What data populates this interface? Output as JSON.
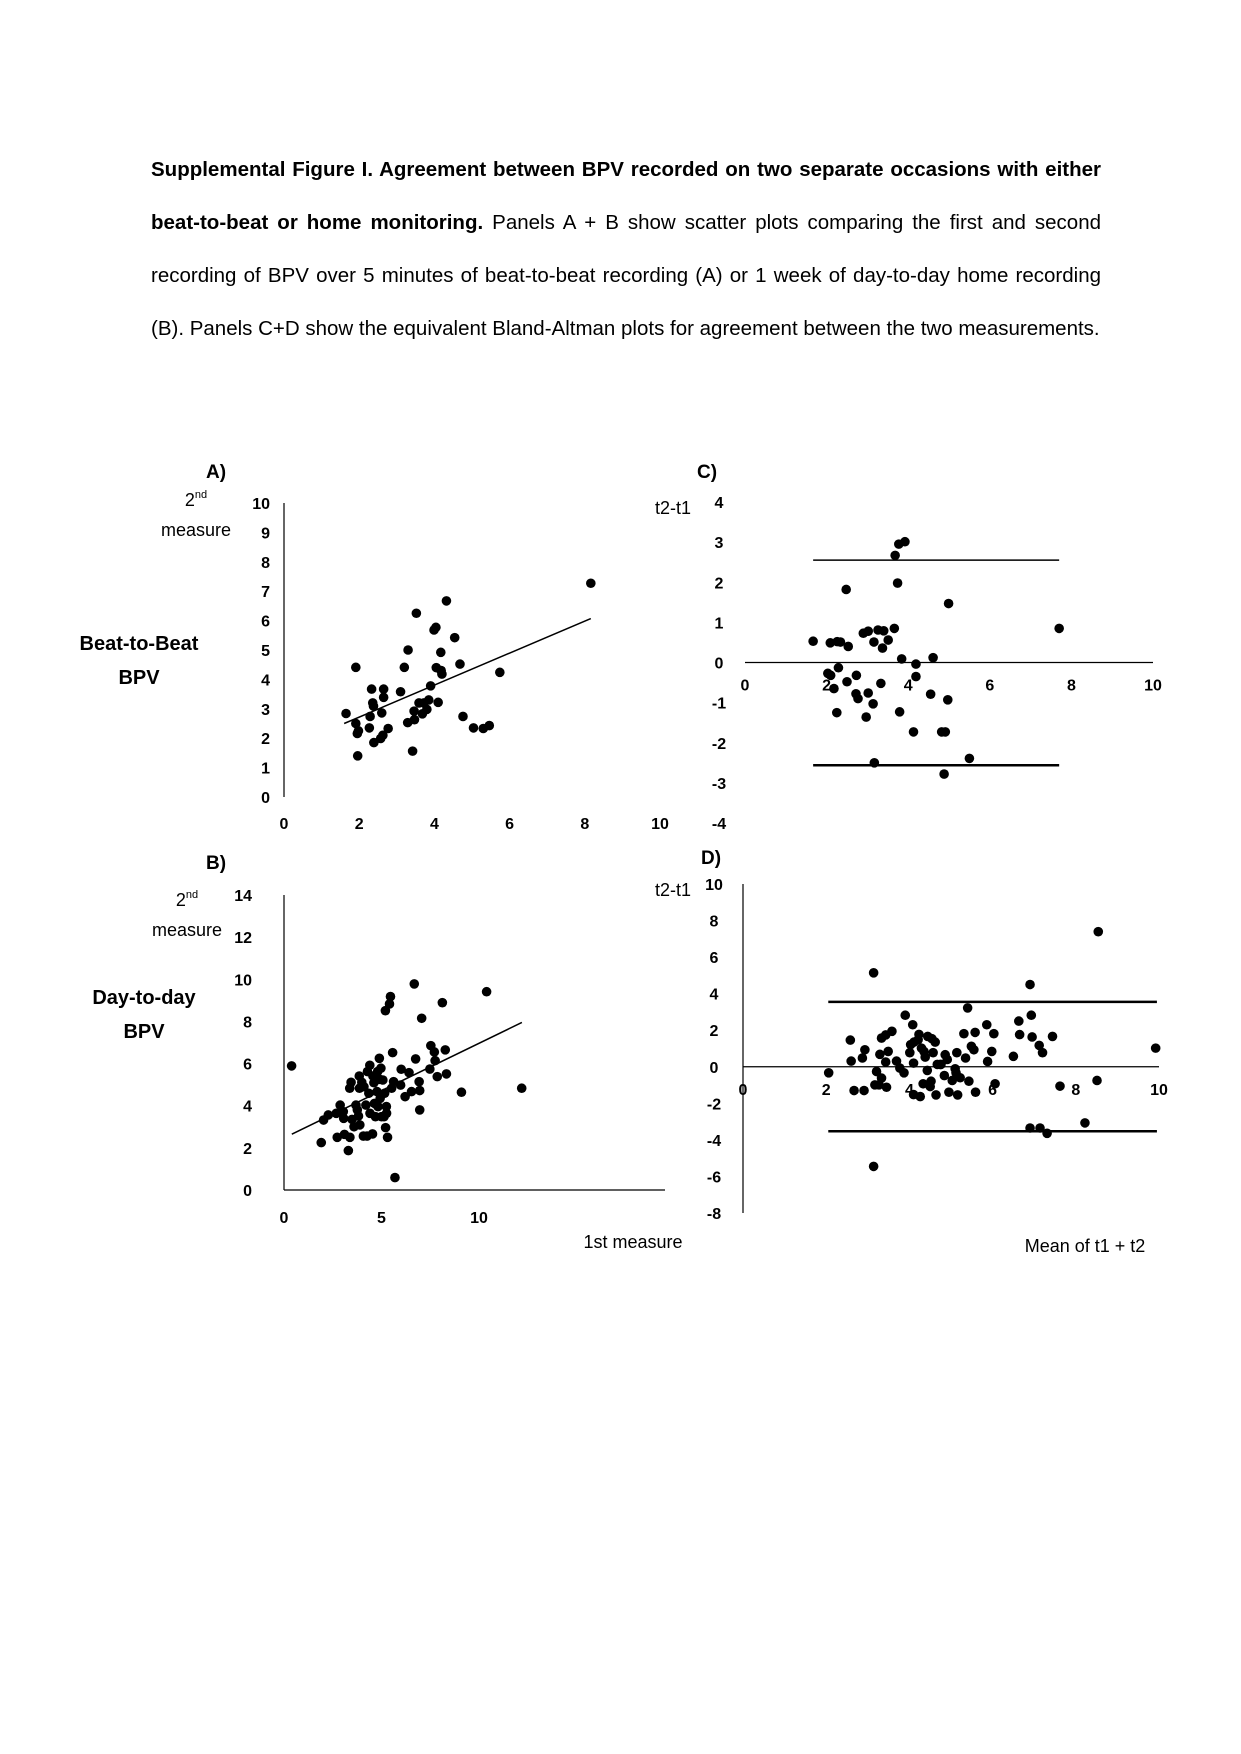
{
  "caption": {
    "bold": "Supplemental Figure I. Agreement between BPV recorded on two separate occasions with either beat-to-beat or home monitoring.",
    "text": " Panels A + B show scatter plots comparing the first and second recording of BPV over 5 minutes of beat-to-beat recording (A) or 1 week of day-to-day home recording (B). Panels C+D show the equivalent Bland-Altman plots for agreement between the two measurements."
  },
  "rows": {
    "top": [
      "Beat-to-Beat",
      "BPV"
    ],
    "bottom": [
      "Day-to-day",
      "BPV"
    ]
  },
  "chart_data": [
    {
      "panel": "A)",
      "type": "scatter",
      "ylabel": [
        "2nd",
        "measure"
      ],
      "xlabel": "",
      "xlim": [
        0,
        10
      ],
      "ylim": [
        0,
        10
      ],
      "xticks": [
        0,
        2,
        4,
        6,
        8,
        10
      ],
      "yticks": [
        0,
        1,
        2,
        3,
        4,
        5,
        6,
        7,
        8,
        9,
        10
      ],
      "trendline": [
        [
          1.6,
          2.5
        ],
        [
          8.16,
          6.07
        ]
      ],
      "points": [
        [
          1.65,
          2.84
        ],
        [
          1.91,
          4.41
        ],
        [
          1.91,
          2.5
        ],
        [
          1.95,
          2.16
        ],
        [
          1.98,
          2.25
        ],
        [
          1.96,
          1.4
        ],
        [
          2.27,
          2.35
        ],
        [
          2.29,
          2.74
        ],
        [
          2.33,
          3.67
        ],
        [
          2.36,
          3.2
        ],
        [
          2.38,
          3.09
        ],
        [
          2.39,
          1.85
        ],
        [
          2.57,
          1.99
        ],
        [
          2.6,
          2.86
        ],
        [
          2.63,
          2.1
        ],
        [
          2.65,
          3.67
        ],
        [
          2.65,
          3.39
        ],
        [
          2.77,
          2.33
        ],
        [
          3.1,
          3.58
        ],
        [
          3.2,
          4.41
        ],
        [
          3.29,
          2.53
        ],
        [
          3.3,
          5.0
        ],
        [
          3.42,
          1.56
        ],
        [
          3.46,
          2.92
        ],
        [
          3.47,
          2.63
        ],
        [
          3.52,
          6.25
        ],
        [
          3.59,
          3.2
        ],
        [
          3.68,
          2.83
        ],
        [
          3.72,
          3.2
        ],
        [
          3.8,
          2.98
        ],
        [
          3.85,
          3.3
        ],
        [
          3.9,
          3.78
        ],
        [
          3.99,
          5.68
        ],
        [
          4.04,
          5.77
        ],
        [
          4.05,
          4.4
        ],
        [
          4.1,
          3.22
        ],
        [
          4.17,
          4.92
        ],
        [
          4.18,
          4.3
        ],
        [
          4.2,
          4.18
        ],
        [
          4.32,
          6.67
        ],
        [
          4.54,
          5.42
        ],
        [
          4.68,
          4.52
        ],
        [
          4.76,
          2.74
        ],
        [
          5.04,
          2.35
        ],
        [
          5.3,
          2.33
        ],
        [
          5.46,
          2.43
        ],
        [
          5.74,
          4.24
        ],
        [
          8.16,
          7.27
        ]
      ]
    },
    {
      "panel": "B)",
      "type": "scatter",
      "ylabel": [
        "2nd",
        "measure"
      ],
      "xlabel": "1st measure",
      "xlim": [
        0,
        14
      ],
      "ylim": [
        0,
        14
      ],
      "xticks": [
        0,
        5,
        10
      ],
      "yticks": [
        0,
        2,
        4,
        6,
        8,
        10,
        12,
        14
      ],
      "trendline": [
        [
          0.4,
          2.65
        ],
        [
          12.2,
          7.95
        ]
      ],
      "points": [
        [
          0.39,
          5.89
        ],
        [
          1.91,
          2.25
        ],
        [
          2.03,
          3.32
        ],
        [
          2.27,
          3.56
        ],
        [
          2.68,
          3.64
        ],
        [
          2.73,
          2.5
        ],
        [
          2.88,
          4.03
        ],
        [
          3.04,
          3.72
        ],
        [
          3.06,
          3.4
        ],
        [
          3.1,
          2.64
        ],
        [
          3.3,
          1.87
        ],
        [
          3.37,
          4.83
        ],
        [
          3.44,
          5.11
        ],
        [
          3.38,
          2.5
        ],
        [
          3.49,
          3.35
        ],
        [
          3.59,
          3.0
        ],
        [
          3.69,
          4.03
        ],
        [
          3.76,
          3.8
        ],
        [
          3.82,
          3.51
        ],
        [
          3.86,
          5.41
        ],
        [
          3.87,
          4.83
        ],
        [
          3.89,
          3.09
        ],
        [
          3.99,
          5.11
        ],
        [
          4.1,
          4.9
        ],
        [
          4.07,
          2.56
        ],
        [
          4.2,
          4.03
        ],
        [
          4.26,
          2.56
        ],
        [
          4.28,
          5.62
        ],
        [
          4.35,
          4.59
        ],
        [
          4.4,
          5.92
        ],
        [
          4.41,
          3.64
        ],
        [
          4.54,
          2.66
        ],
        [
          4.56,
          5.41
        ],
        [
          4.61,
          5.09
        ],
        [
          4.64,
          4.11
        ],
        [
          4.69,
          3.48
        ],
        [
          4.77,
          4.67
        ],
        [
          4.8,
          5.62
        ],
        [
          4.82,
          3.96
        ],
        [
          4.89,
          6.25
        ],
        [
          4.9,
          5.25
        ],
        [
          4.93,
          4.35
        ],
        [
          4.97,
          5.78
        ],
        [
          5.0,
          3.48
        ],
        [
          5.07,
          5.22
        ],
        [
          5.13,
          3.48
        ],
        [
          5.16,
          4.59
        ],
        [
          5.2,
          8.51
        ],
        [
          5.21,
          2.96
        ],
        [
          5.25,
          3.96
        ],
        [
          5.26,
          3.64
        ],
        [
          5.31,
          2.5
        ],
        [
          5.41,
          8.83
        ],
        [
          5.46,
          9.18
        ],
        [
          5.52,
          4.83
        ],
        [
          5.57,
          6.52
        ],
        [
          5.62,
          5.14
        ],
        [
          5.69,
          0.59
        ],
        [
          5.98,
          4.98
        ],
        [
          6.01,
          5.73
        ],
        [
          6.21,
          4.43
        ],
        [
          6.41,
          5.57
        ],
        [
          6.54,
          4.67
        ],
        [
          6.68,
          9.78
        ],
        [
          6.75,
          6.22
        ],
        [
          6.93,
          5.14
        ],
        [
          6.96,
          4.72
        ],
        [
          6.96,
          3.8
        ],
        [
          7.06,
          8.15
        ],
        [
          7.48,
          5.74
        ],
        [
          7.53,
          6.85
        ],
        [
          7.71,
          6.55
        ],
        [
          7.75,
          6.14
        ],
        [
          7.86,
          5.38
        ],
        [
          8.12,
          8.89
        ],
        [
          8.27,
          6.65
        ],
        [
          8.33,
          5.51
        ],
        [
          9.1,
          4.64
        ],
        [
          10.39,
          9.41
        ],
        [
          12.19,
          4.83
        ]
      ]
    },
    {
      "panel": "C)",
      "type": "scatter",
      "ylabel": "t2-t1",
      "xlabel": "",
      "xlim": [
        0,
        10
      ],
      "ylim": [
        -4,
        4
      ],
      "xticks": [
        0,
        2,
        4,
        6,
        8,
        10
      ],
      "yticks": [
        -4,
        -3,
        -2,
        -1,
        0,
        1,
        2,
        3,
        4
      ],
      "mean_line": 0,
      "limits": {
        "upper": 2.55,
        "lower": -2.56,
        "x_range": [
          1.67,
          7.7
        ]
      },
      "points": [
        [
          1.67,
          0.53
        ],
        [
          2.09,
          0.49
        ],
        [
          2.26,
          0.52
        ],
        [
          2.34,
          0.51
        ],
        [
          2.53,
          0.4
        ],
        [
          2.48,
          1.82
        ],
        [
          2.9,
          0.73
        ],
        [
          3.02,
          0.78
        ],
        [
          3.16,
          0.51
        ],
        [
          3.26,
          0.81
        ],
        [
          3.4,
          0.79
        ],
        [
          3.51,
          0.56
        ],
        [
          3.37,
          0.36
        ],
        [
          3.66,
          0.85
        ],
        [
          3.68,
          2.67
        ],
        [
          3.77,
          2.95
        ],
        [
          3.92,
          3.01
        ],
        [
          3.74,
          1.98
        ],
        [
          3.84,
          0.09
        ],
        [
          4.19,
          -0.04
        ],
        [
          4.61,
          0.12
        ],
        [
          4.99,
          1.47
        ],
        [
          7.7,
          0.85
        ],
        [
          2.03,
          -0.27
        ],
        [
          2.1,
          -0.32
        ],
        [
          2.29,
          -0.13
        ],
        [
          2.73,
          -0.32
        ],
        [
          2.5,
          -0.48
        ],
        [
          2.18,
          -0.65
        ],
        [
          2.72,
          -0.78
        ],
        [
          2.77,
          -0.9
        ],
        [
          3.02,
          -0.76
        ],
        [
          3.14,
          -1.03
        ],
        [
          3.33,
          -0.52
        ],
        [
          4.19,
          -0.35
        ],
        [
          4.55,
          -0.79
        ],
        [
          4.97,
          -0.93
        ],
        [
          2.25,
          -1.25
        ],
        [
          2.97,
          -1.36
        ],
        [
          3.79,
          -1.23
        ],
        [
          4.13,
          -1.73
        ],
        [
          4.82,
          -1.73
        ],
        [
          4.91,
          -1.73
        ],
        [
          3.17,
          -2.5
        ],
        [
          5.5,
          -2.39
        ],
        [
          4.88,
          -2.78
        ]
      ]
    },
    {
      "panel": "D)",
      "type": "scatter",
      "ylabel": "t2-t1",
      "xlabel": "Mean of t1 + t2",
      "xlim": [
        0,
        10
      ],
      "ylim": [
        -8,
        10
      ],
      "xticks": [
        0,
        2,
        4,
        6,
        8,
        10
      ],
      "yticks": [
        -8,
        -6,
        -4,
        -2,
        0,
        2,
        4,
        6,
        8,
        10
      ],
      "mean_line": 0,
      "limits": {
        "upper": 3.55,
        "lower": -3.53,
        "x_range": [
          2.05,
          9.95
        ]
      },
      "points": [
        [
          2.06,
          -0.33
        ],
        [
          2.58,
          1.46
        ],
        [
          2.6,
          0.31
        ],
        [
          2.67,
          -1.3
        ],
        [
          2.87,
          0.48
        ],
        [
          2.91,
          -1.3
        ],
        [
          2.93,
          0.93
        ],
        [
          3.14,
          5.14
        ],
        [
          3.14,
          -5.45
        ],
        [
          3.17,
          -0.99
        ],
        [
          3.21,
          -0.26
        ],
        [
          3.27,
          -0.99
        ],
        [
          3.29,
          0.68
        ],
        [
          3.33,
          1.57
        ],
        [
          3.33,
          -0.62
        ],
        [
          3.43,
          1.74
        ],
        [
          3.43,
          0.26
        ],
        [
          3.45,
          -1.12
        ],
        [
          3.49,
          0.84
        ],
        [
          3.58,
          1.94
        ],
        [
          3.69,
          0.31
        ],
        [
          3.77,
          -0.07
        ],
        [
          3.87,
          -0.33
        ],
        [
          3.9,
          2.82
        ],
        [
          4.01,
          0.77
        ],
        [
          4.03,
          1.21
        ],
        [
          4.08,
          2.3
        ],
        [
          4.1,
          0.2
        ],
        [
          4.1,
          -1.52
        ],
        [
          4.11,
          1.35
        ],
        [
          4.21,
          1.48
        ],
        [
          4.23,
          1.77
        ],
        [
          4.26,
          -1.63
        ],
        [
          4.29,
          1.02
        ],
        [
          4.33,
          -0.93
        ],
        [
          4.35,
          0.84
        ],
        [
          4.38,
          0.53
        ],
        [
          4.43,
          -0.2
        ],
        [
          4.44,
          1.66
        ],
        [
          4.5,
          -1.08
        ],
        [
          4.52,
          -0.79
        ],
        [
          4.54,
          1.54
        ],
        [
          4.57,
          0.77
        ],
        [
          4.62,
          1.35
        ],
        [
          4.64,
          -1.54
        ],
        [
          4.67,
          0.13
        ],
        [
          4.74,
          0.13
        ],
        [
          4.76,
          0.13
        ],
        [
          4.84,
          -0.48
        ],
        [
          4.86,
          0.66
        ],
        [
          4.91,
          0.4
        ],
        [
          4.95,
          -1.39
        ],
        [
          5.03,
          -0.75
        ],
        [
          5.1,
          -0.11
        ],
        [
          5.12,
          -0.33
        ],
        [
          5.14,
          0.77
        ],
        [
          5.16,
          -1.54
        ],
        [
          5.22,
          -0.6
        ],
        [
          5.31,
          1.81
        ],
        [
          5.35,
          0.48
        ],
        [
          5.4,
          3.22
        ],
        [
          5.43,
          -0.79
        ],
        [
          5.49,
          1.12
        ],
        [
          5.55,
          0.93
        ],
        [
          5.58,
          1.88
        ],
        [
          5.59,
          -1.39
        ],
        [
          5.86,
          2.3
        ],
        [
          5.88,
          0.29
        ],
        [
          5.98,
          0.84
        ],
        [
          6.03,
          1.81
        ],
        [
          6.06,
          -0.93
        ],
        [
          6.5,
          0.57
        ],
        [
          6.63,
          2.5
        ],
        [
          6.65,
          1.76
        ],
        [
          6.9,
          4.5
        ],
        [
          6.9,
          -3.35
        ],
        [
          6.93,
          2.82
        ],
        [
          6.95,
          1.63
        ],
        [
          7.12,
          1.17
        ],
        [
          7.14,
          -3.35
        ],
        [
          7.2,
          0.77
        ],
        [
          7.31,
          -3.64
        ],
        [
          7.44,
          1.66
        ],
        [
          7.62,
          -1.06
        ],
        [
          8.22,
          -3.07
        ],
        [
          8.51,
          -0.75
        ],
        [
          8.54,
          7.39
        ],
        [
          9.92,
          1.02
        ]
      ]
    }
  ]
}
